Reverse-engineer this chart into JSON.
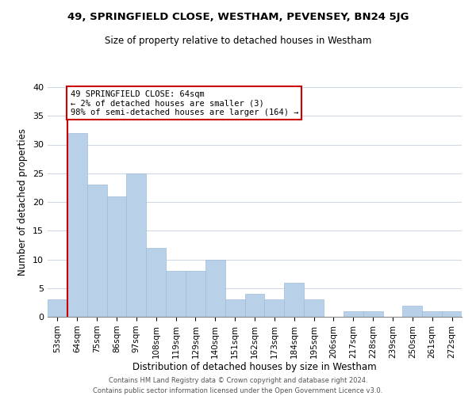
{
  "title": "49, SPRINGFIELD CLOSE, WESTHAM, PEVENSEY, BN24 5JG",
  "subtitle": "Size of property relative to detached houses in Westham",
  "xlabel": "Distribution of detached houses by size in Westham",
  "ylabel": "Number of detached properties",
  "bar_labels": [
    "53sqm",
    "64sqm",
    "75sqm",
    "86sqm",
    "97sqm",
    "108sqm",
    "119sqm",
    "129sqm",
    "140sqm",
    "151sqm",
    "162sqm",
    "173sqm",
    "184sqm",
    "195sqm",
    "206sqm",
    "217sqm",
    "228sqm",
    "239sqm",
    "250sqm",
    "261sqm",
    "272sqm"
  ],
  "bar_values": [
    3,
    32,
    23,
    21,
    25,
    12,
    8,
    8,
    10,
    3,
    4,
    3,
    6,
    3,
    0,
    1,
    1,
    0,
    2,
    1,
    1
  ],
  "bar_color": "#b8d0e8",
  "bar_edge_color": "#a0bcd8",
  "vline_x_index": 1,
  "vline_color": "#cc0000",
  "annotation_line1": "49 SPRINGFIELD CLOSE: 64sqm",
  "annotation_line2": "← 2% of detached houses are smaller (3)",
  "annotation_line3": "98% of semi-detached houses are larger (164) →",
  "annotation_box_color": "#ffffff",
  "annotation_box_edge": "#cc0000",
  "ylim": [
    0,
    40
  ],
  "yticks": [
    0,
    5,
    10,
    15,
    20,
    25,
    30,
    35,
    40
  ],
  "footer1": "Contains HM Land Registry data © Crown copyright and database right 2024.",
  "footer2": "Contains public sector information licensed under the Open Government Licence v3.0.",
  "background_color": "#ffffff",
  "grid_color": "#d0d8e4"
}
